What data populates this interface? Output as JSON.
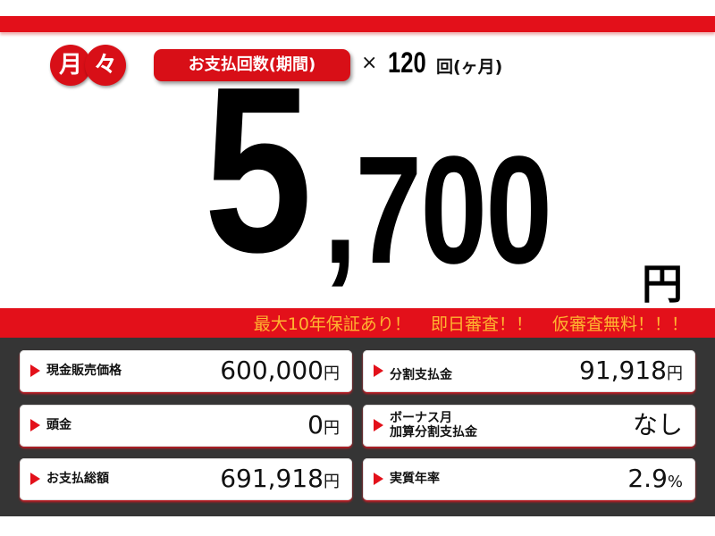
{
  "badge": [
    "月",
    "々"
  ],
  "period_label": "お支払回数(期間)",
  "times": "×",
  "count": "120",
  "count_unit": "回(ヶ月)",
  "monthly": {
    "lead": "5",
    "rest": ",700",
    "unit": "円"
  },
  "slogan": "最大10年保証あり！ 即日審査！！ 仮審査無料！！！",
  "colors": {
    "red": "#e3101a",
    "slogan": "#ffb530",
    "panel": "#353535"
  },
  "cards": [
    {
      "label": "現金販売価格",
      "value": "600,000",
      "unit": "円"
    },
    {
      "label": "分割支払金",
      "value": "91,918",
      "unit": "円"
    },
    {
      "label": "頭金",
      "value": "0",
      "unit": "円"
    },
    {
      "label": "ボーナス月\n加算分割支払金",
      "value": "なし",
      "unit": ""
    },
    {
      "label": "お支払総額",
      "value": "691,918",
      "unit": "円"
    },
    {
      "label": "実質年率",
      "value": "2.9",
      "unit": "%"
    }
  ]
}
